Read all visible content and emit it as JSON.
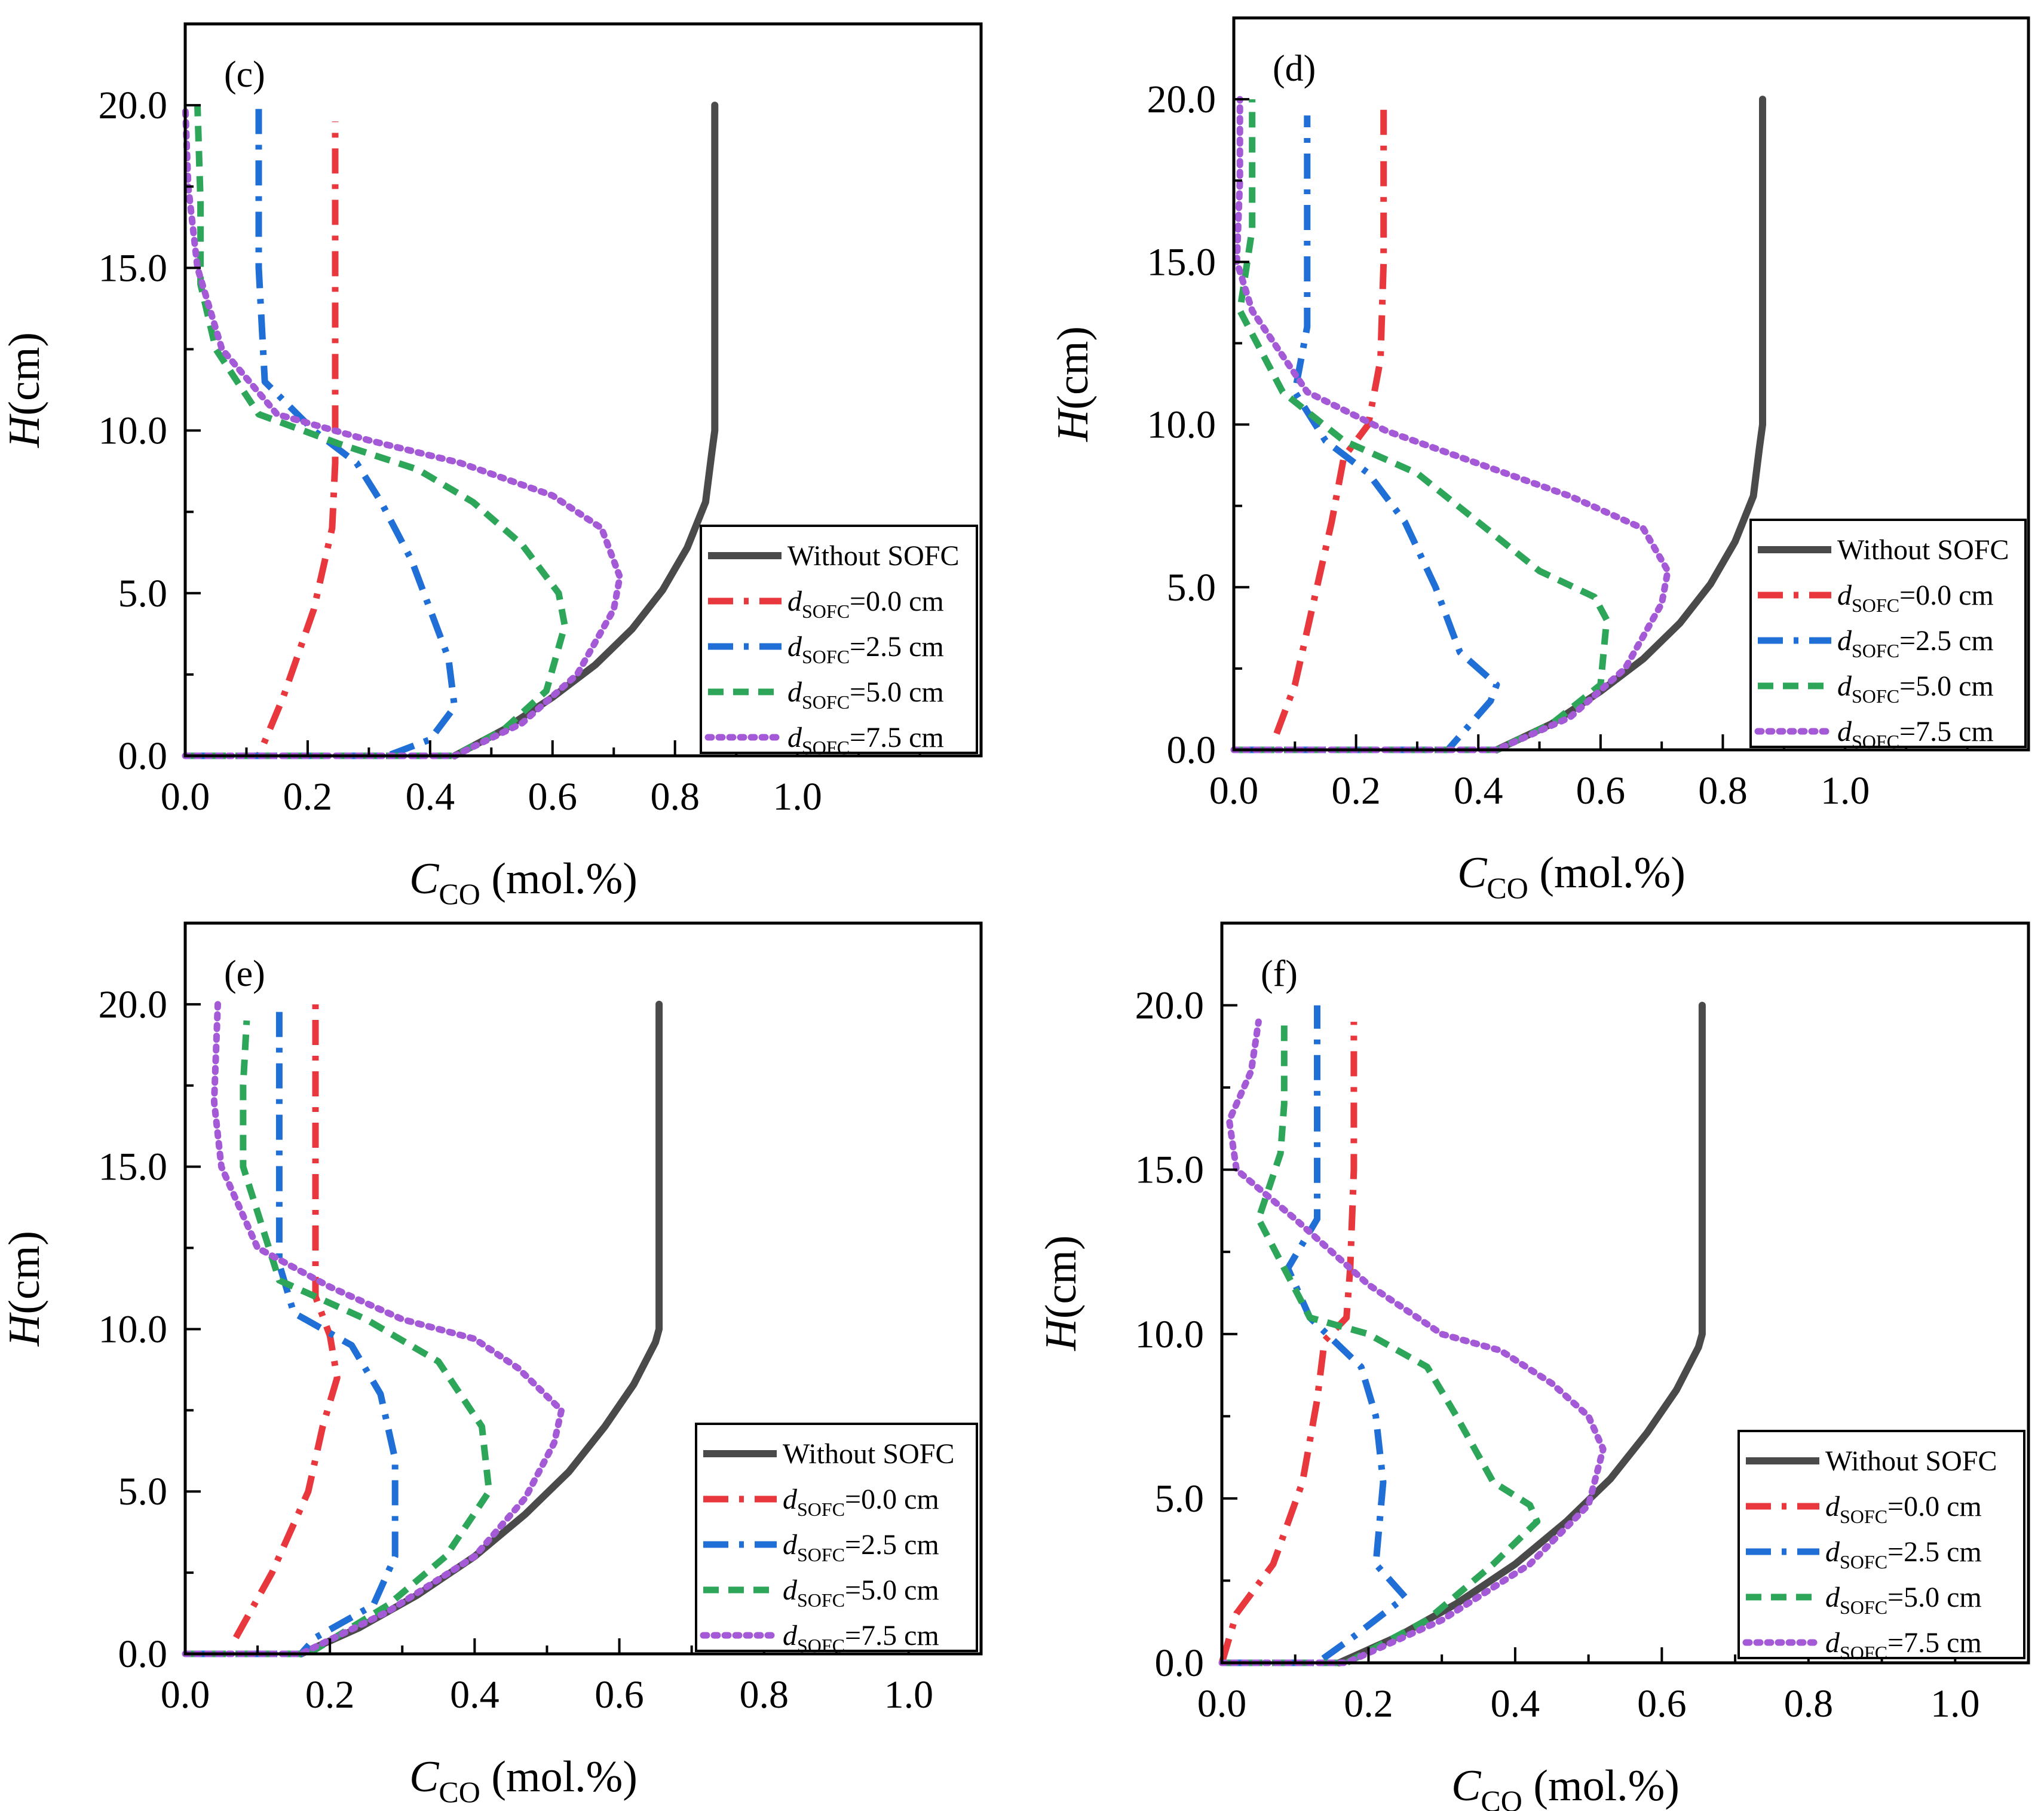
{
  "figure": {
    "legend_entries": [
      {
        "label_main": "Without SOFC",
        "label_prefix": "",
        "label_sub": "",
        "label_suffix": ""
      },
      {
        "label_main": "",
        "label_prefix": "d",
        "label_sub": "SOFC",
        "label_suffix": "=0.0 cm"
      },
      {
        "label_main": "",
        "label_prefix": "d",
        "label_sub": "SOFC",
        "label_suffix": "=2.5 cm"
      },
      {
        "label_main": "",
        "label_prefix": "d",
        "label_sub": "SOFC",
        "label_suffix": "=5.0 cm"
      },
      {
        "label_main": "",
        "label_prefix": "d",
        "label_sub": "SOFC",
        "label_suffix": "=7.5 cm"
      }
    ],
    "colors": {
      "without": "#4a4a4a",
      "d0": "#e8383d",
      "d25": "#1f6fd6",
      "d50": "#2ea65a",
      "d75": "#a45ad6",
      "axis": "#000000"
    },
    "ylabel_main": "H",
    "ylabel_unit": "(cm)",
    "xlabel_var": "C",
    "xlabel_sub": "CO",
    "xlabel_unit": " (mol.%)"
  },
  "chart_data": [
    {
      "type": "line",
      "panel_label": "(c)",
      "xlim": [
        0.0,
        1.3
      ],
      "ylim": [
        0.0,
        22.5
      ],
      "xticks": [
        0.0,
        0.2,
        0.4,
        0.6,
        0.8,
        1.0
      ],
      "xtick_labels": [
        "0.0",
        "0.2",
        "0.4",
        "0.6",
        "0.8",
        "1.0"
      ],
      "yticks": [
        0,
        5,
        10,
        15,
        20
      ],
      "ytick_labels": [
        "0.0",
        "5.0",
        "10.0",
        "15.0",
        "20.0"
      ],
      "xlabel": "C_CO (mol.%)",
      "ylabel": "H(cm)",
      "legend_position": "lower-right",
      "series": [
        {
          "name": "Without SOFC",
          "key": "without",
          "x": [
            0.44,
            0.52,
            0.6,
            0.67,
            0.73,
            0.78,
            0.82,
            0.85,
            0.86,
            0.865,
            0.865
          ],
          "y": [
            0,
            0.8,
            1.8,
            2.8,
            3.9,
            5.1,
            6.4,
            7.8,
            9.3,
            10,
            20
          ]
        },
        {
          "name": "dSOFC=0.0 cm",
          "key": "d0",
          "x": [
            0.0,
            0.12,
            0.16,
            0.21,
            0.24,
            0.245,
            0.245,
            0.245
          ],
          "y": [
            0,
            0,
            1.8,
            4.5,
            7,
            9,
            15,
            19.5
          ]
        },
        {
          "name": "dSOFC=2.5 cm",
          "key": "d25",
          "x": [
            0.0,
            0.33,
            0.4,
            0.44,
            0.43,
            0.37,
            0.32,
            0.28,
            0.21,
            0.13,
            0.12,
            0.12
          ],
          "y": [
            0,
            0,
            0.5,
            1.5,
            3,
            6,
            7.8,
            9,
            10,
            11.5,
            15,
            20
          ]
        },
        {
          "name": "dSOFC=5.0 cm",
          "key": "d50",
          "x": [
            0.0,
            0.44,
            0.52,
            0.59,
            0.62,
            0.61,
            0.55,
            0.47,
            0.38,
            0.25,
            0.12,
            0.05,
            0.025,
            0.025,
            0.02
          ],
          "y": [
            0,
            0,
            0.8,
            2,
            4,
            5,
            6.5,
            7.8,
            8.8,
            9.6,
            10.5,
            12.5,
            14.5,
            17,
            20
          ]
        },
        {
          "name": "dSOFC=7.5 cm",
          "key": "d75",
          "x": [
            0.0,
            0.44,
            0.55,
            0.64,
            0.7,
            0.71,
            0.68,
            0.6,
            0.45,
            0.3,
            0.15,
            0.06,
            0.02,
            0.005,
            0.0
          ],
          "y": [
            0,
            0,
            1,
            2.5,
            4.5,
            5.5,
            7,
            8,
            9,
            9.7,
            10.5,
            12.5,
            15,
            17.5,
            20
          ]
        }
      ]
    },
    {
      "type": "line",
      "panel_label": "(d)",
      "xlim": [
        0.0,
        1.3
      ],
      "ylim": [
        0.0,
        22.5
      ],
      "xticks": [
        0.0,
        0.2,
        0.4,
        0.6,
        0.8,
        1.0
      ],
      "xtick_labels": [
        "0.0",
        "0.2",
        "0.4",
        "0.6",
        "0.8",
        "1.0"
      ],
      "yticks": [
        0,
        5,
        10,
        15,
        20
      ],
      "ytick_labels": [
        "0.0",
        "5.0",
        "10.0",
        "15.0",
        "20.0"
      ],
      "xlabel": "C_CO (mol.%)",
      "ylabel": "H(cm)",
      "legend_position": "lower-right",
      "series": [
        {
          "name": "Without SOFC",
          "key": "without",
          "x": [
            0.43,
            0.52,
            0.6,
            0.67,
            0.73,
            0.78,
            0.82,
            0.85,
            0.86,
            0.865,
            0.865
          ],
          "y": [
            0,
            0.8,
            1.8,
            2.8,
            3.9,
            5.1,
            6.4,
            7.8,
            9.3,
            10,
            20
          ]
        },
        {
          "name": "dSOFC=0.0 cm",
          "key": "d0",
          "x": [
            0.07,
            0.1,
            0.13,
            0.16,
            0.18,
            0.22,
            0.24,
            0.245,
            0.245
          ],
          "y": [
            0.5,
            2,
            4.5,
            7,
            9,
            10,
            12,
            15,
            20
          ]
        },
        {
          "name": "dSOFC=2.5 cm",
          "key": "d25",
          "x": [
            0.0,
            0.35,
            0.42,
            0.43,
            0.37,
            0.33,
            0.28,
            0.22,
            0.15,
            0.1,
            0.12,
            0.12,
            0.12
          ],
          "y": [
            0,
            0,
            1.5,
            2,
            3,
            5,
            7,
            8.5,
            9.5,
            11,
            13,
            16,
            19.5
          ]
        },
        {
          "name": "dSOFC=5.0 cm",
          "key": "d50",
          "x": [
            0.0,
            0.43,
            0.52,
            0.6,
            0.61,
            0.59,
            0.5,
            0.4,
            0.3,
            0.18,
            0.08,
            0.01,
            0.03,
            0.03
          ],
          "y": [
            0,
            0,
            0.8,
            2,
            4,
            4.7,
            5.5,
            7,
            8.5,
            9.5,
            11,
            13.5,
            16,
            20
          ]
        },
        {
          "name": "dSOFC=7.5 cm",
          "key": "d75",
          "x": [
            0.0,
            0.43,
            0.55,
            0.64,
            0.7,
            0.71,
            0.67,
            0.55,
            0.4,
            0.25,
            0.12,
            0.03,
            0.005,
            0.01,
            0.01
          ],
          "y": [
            0,
            0,
            1,
            2.5,
            4.5,
            5.5,
            6.8,
            7.8,
            8.8,
            9.8,
            11,
            13.5,
            15,
            17.5,
            20
          ]
        }
      ]
    },
    {
      "type": "line",
      "panel_label": "(e)",
      "xlim": [
        0.0,
        1.1
      ],
      "ylim": [
        0.0,
        22.5
      ],
      "xticks": [
        0.0,
        0.2,
        0.4,
        0.6,
        0.8,
        1.0
      ],
      "xtick_labels": [
        "0.0",
        "0.2",
        "0.4",
        "0.6",
        "0.8",
        "1.0"
      ],
      "yticks": [
        0,
        5,
        10,
        15,
        20
      ],
      "ytick_labels": [
        "0.0",
        "5.0",
        "10.0",
        "15.0",
        "20.0"
      ],
      "xlabel": "C_CO (mol.%)",
      "ylabel": "H(cm)",
      "legend_position": "lower-right",
      "series": [
        {
          "name": "Without SOFC",
          "key": "without",
          "x": [
            0.16,
            0.24,
            0.32,
            0.4,
            0.47,
            0.53,
            0.58,
            0.62,
            0.65,
            0.655,
            0.655
          ],
          "y": [
            0,
            0.8,
            1.8,
            3,
            4.3,
            5.6,
            7,
            8.3,
            9.6,
            10,
            20
          ]
        },
        {
          "name": "dSOFC=0.0 cm",
          "key": "d0",
          "x": [
            0.07,
            0.12,
            0.17,
            0.19,
            0.21,
            0.2,
            0.18,
            0.18,
            0.18
          ],
          "y": [
            0.5,
            2.5,
            5,
            7,
            8.5,
            9.8,
            11,
            15,
            20
          ]
        },
        {
          "name": "dSOFC=2.5 cm",
          "key": "d25",
          "x": [
            0.0,
            0.16,
            0.18,
            0.26,
            0.29,
            0.29,
            0.27,
            0.23,
            0.15,
            0.13,
            0.13,
            0.13
          ],
          "y": [
            0,
            0,
            0.5,
            1.5,
            3,
            6,
            8,
            9.5,
            10.5,
            12,
            15,
            20
          ]
        },
        {
          "name": "dSOFC=5.0 cm",
          "key": "d50",
          "x": [
            0.0,
            0.17,
            0.28,
            0.36,
            0.42,
            0.41,
            0.35,
            0.25,
            0.13,
            0.08,
            0.08,
            0.085
          ],
          "y": [
            0,
            0,
            1.5,
            3,
            5,
            7,
            9,
            10.3,
            11.5,
            15,
            17.5,
            19.5
          ]
        },
        {
          "name": "dSOFC=7.5 cm",
          "key": "d75",
          "x": [
            0.0,
            0.16,
            0.28,
            0.4,
            0.47,
            0.51,
            0.52,
            0.46,
            0.4,
            0.3,
            0.2,
            0.1,
            0.05,
            0.04,
            0.045
          ],
          "y": [
            0,
            0,
            1.3,
            3,
            4.8,
            6.5,
            7.5,
            8.8,
            9.7,
            10.3,
            11.3,
            12.5,
            15,
            17,
            20
          ]
        }
      ]
    },
    {
      "type": "line",
      "panel_label": "(f)",
      "xlim": [
        0.0,
        1.1
      ],
      "ylim": [
        0.0,
        22.5
      ],
      "xticks": [
        0.0,
        0.2,
        0.4,
        0.6,
        0.8,
        1.0
      ],
      "xtick_labels": [
        "0.0",
        "0.2",
        "0.4",
        "0.6",
        "0.8",
        "1.0"
      ],
      "yticks": [
        0,
        5,
        10,
        15,
        20
      ],
      "ytick_labels": [
        "0.0",
        "5.0",
        "10.0",
        "15.0",
        "20.0"
      ],
      "xlabel": "C_CO (mol.%)",
      "ylabel": "H(cm)",
      "legend_position": "lower-right",
      "series": [
        {
          "name": "Without SOFC",
          "key": "without",
          "x": [
            0.16,
            0.24,
            0.32,
            0.4,
            0.47,
            0.53,
            0.58,
            0.62,
            0.65,
            0.655,
            0.655
          ],
          "y": [
            0,
            0.8,
            1.8,
            3,
            4.3,
            5.6,
            7,
            8.3,
            9.6,
            10,
            20
          ]
        },
        {
          "name": "dSOFC=0.0 cm",
          "key": "d0",
          "x": [
            0.0,
            0.02,
            0.07,
            0.11,
            0.13,
            0.14,
            0.17,
            0.175,
            0.18,
            0.18
          ],
          "y": [
            0,
            1.5,
            3,
            5.5,
            8,
            9.8,
            10.5,
            12,
            15,
            19.5
          ]
        },
        {
          "name": "dSOFC=2.5 cm",
          "key": "d25",
          "x": [
            0.0,
            0.13,
            0.18,
            0.25,
            0.21,
            0.22,
            0.21,
            0.19,
            0.12,
            0.09,
            0.13,
            0.13,
            0.13
          ],
          "y": [
            0,
            0,
            0.8,
            2,
            3,
            5.5,
            7.5,
            9,
            10.5,
            12,
            13.5,
            16,
            20
          ]
        },
        {
          "name": "dSOFC=5.0 cm",
          "key": "d50",
          "x": [
            0.0,
            0.17,
            0.28,
            0.37,
            0.43,
            0.42,
            0.37,
            0.32,
            0.28,
            0.2,
            0.12,
            0.05,
            0.08,
            0.085,
            0.085
          ],
          "y": [
            0,
            0,
            1.3,
            3,
            4.3,
            4.8,
            5.5,
            7.5,
            9,
            10,
            10.5,
            13.5,
            15.5,
            17,
            19.5
          ]
        },
        {
          "name": "dSOFC=7.5 cm",
          "key": "d75",
          "x": [
            0.0,
            0.17,
            0.3,
            0.42,
            0.5,
            0.52,
            0.5,
            0.45,
            0.38,
            0.3,
            0.2,
            0.1,
            0.02,
            0.01,
            0.04,
            0.05
          ],
          "y": [
            0,
            0,
            1.3,
            3,
            4.8,
            6.5,
            7.5,
            8.5,
            9.5,
            10,
            11.5,
            13.5,
            15,
            16.5,
            18,
            19.5
          ]
        }
      ]
    }
  ]
}
